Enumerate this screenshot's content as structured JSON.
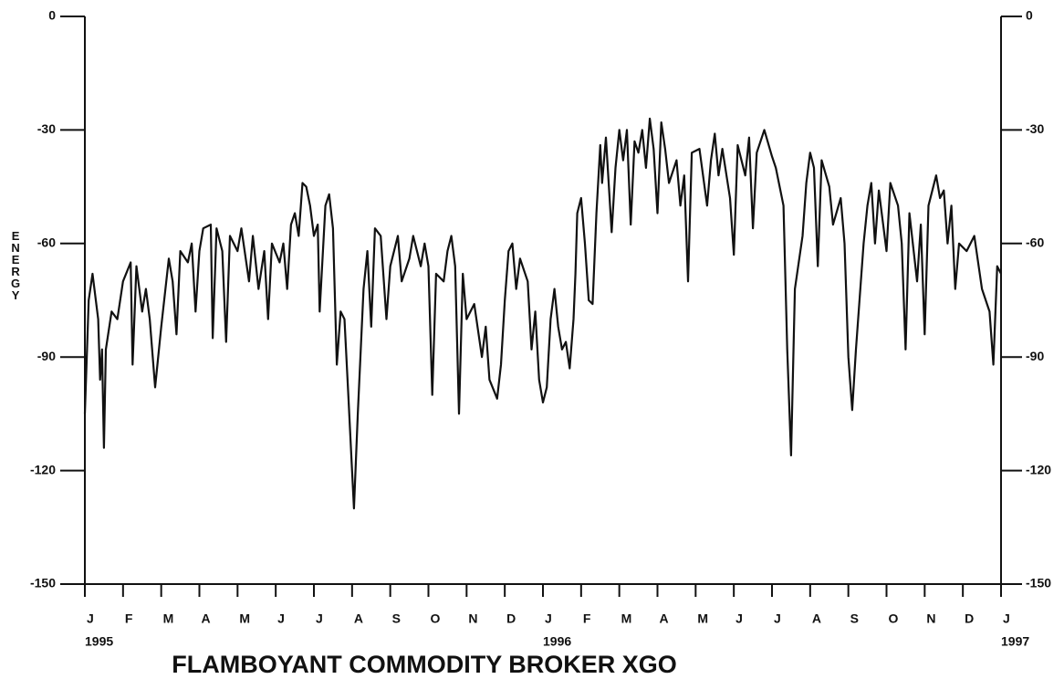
{
  "chart_data": {
    "type": "line",
    "title": "FLAMBOYANT COMMODITY BROKER XGO",
    "y_label": "ENERGY",
    "xlim": [
      0,
      24
    ],
    "xticks": [
      {
        "value": 0,
        "label": "J"
      },
      {
        "value": 1,
        "label": "F"
      },
      {
        "value": 2,
        "label": "M"
      },
      {
        "value": 3,
        "label": "A"
      },
      {
        "value": 4,
        "label": "M"
      },
      {
        "value": 5,
        "label": "J"
      },
      {
        "value": 6,
        "label": "J"
      },
      {
        "value": 7,
        "label": "A"
      },
      {
        "value": 8,
        "label": "S"
      },
      {
        "value": 9,
        "label": "O"
      },
      {
        "value": 10,
        "label": "N"
      },
      {
        "value": 11,
        "label": "D"
      },
      {
        "value": 12,
        "label": "J"
      },
      {
        "value": 13,
        "label": "F"
      },
      {
        "value": 14,
        "label": "M"
      },
      {
        "value": 15,
        "label": "A"
      },
      {
        "value": 16,
        "label": "M"
      },
      {
        "value": 17,
        "label": "J"
      },
      {
        "value": 18,
        "label": "J"
      },
      {
        "value": 19,
        "label": "A"
      },
      {
        "value": 20,
        "label": "S"
      },
      {
        "value": 21,
        "label": "O"
      },
      {
        "value": 22,
        "label": "N"
      },
      {
        "value": 23,
        "label": "D"
      },
      {
        "value": 24,
        "label": "J"
      }
    ],
    "year_labels": [
      {
        "value": 0,
        "label": "1995"
      },
      {
        "value": 12,
        "label": "1996"
      },
      {
        "value": 24,
        "label": "1997"
      }
    ],
    "ylim": [
      -150,
      0
    ],
    "yticks": [
      0,
      -30,
      -60,
      -90,
      -120,
      -150
    ],
    "y2lim": [
      -150,
      0
    ],
    "y2ticks": [
      0,
      -30,
      -60,
      -90,
      -120,
      -150
    ],
    "series": [
      {
        "color": "#111111",
        "x": [
          0,
          0.1,
          0.2,
          0.35,
          0.4,
          0.45,
          0.5,
          0.55,
          0.7,
          0.85,
          1.0,
          1.2,
          1.25,
          1.35,
          1.5,
          1.6,
          1.7,
          1.84,
          2.0,
          2.2,
          2.3,
          2.4,
          2.5,
          2.7,
          2.8,
          2.9,
          3.0,
          3.1,
          3.3,
          3.35,
          3.45,
          3.6,
          3.7,
          3.8,
          4.0,
          4.1,
          4.3,
          4.4,
          4.55,
          4.7,
          4.8,
          4.9,
          5.1,
          5.2,
          5.3,
          5.4,
          5.5,
          5.6,
          5.7,
          5.8,
          5.9,
          6.0,
          6.1,
          6.15,
          6.3,
          6.4,
          6.5,
          6.6,
          6.7,
          6.8,
          6.9,
          7.0,
          7.05,
          7.15,
          7.3,
          7.4,
          7.5,
          7.6,
          7.75,
          7.9,
          8.0,
          8.2,
          8.3,
          8.5,
          8.6,
          8.8,
          8.9,
          9.0,
          9.1,
          9.2,
          9.4,
          9.5,
          9.6,
          9.7,
          9.8,
          9.9,
          10.0,
          10.2,
          10.4,
          10.5,
          10.6,
          10.8,
          10.9,
          11.0,
          11.1,
          11.2,
          11.3,
          11.4,
          11.6,
          11.7,
          11.8,
          11.9,
          12.0,
          12.1,
          12.2,
          12.3,
          12.4,
          12.5,
          12.6,
          12.7,
          12.8,
          12.85,
          12.9,
          13.0,
          13.1,
          13.2,
          13.3,
          13.4,
          13.5,
          13.55,
          13.65,
          13.8,
          13.9,
          14.0,
          14.1,
          14.2,
          14.3,
          14.4,
          14.5,
          14.6,
          14.7,
          14.8,
          14.9,
          15.0,
          15.1,
          15.2,
          15.3,
          15.5,
          15.6,
          15.7,
          15.8,
          15.9,
          16.1,
          16.3,
          16.4,
          16.5,
          16.6,
          16.7,
          16.9,
          17.0,
          17.1,
          17.3,
          17.4,
          17.5,
          17.6,
          17.8,
          18.0,
          18.1,
          18.3,
          18.4,
          18.5,
          18.6,
          18.8,
          18.9,
          19.0,
          19.1,
          19.2,
          19.3,
          19.5,
          19.6,
          19.8,
          19.9,
          20.0,
          20.1,
          20.2,
          20.4,
          20.5,
          20.6,
          20.7,
          20.8,
          20.9,
          21.0,
          21.1,
          21.3,
          21.4,
          21.5,
          21.6,
          21.8,
          21.9,
          22.0,
          22.1,
          22.3,
          22.4,
          22.5,
          22.6,
          22.7,
          22.8,
          22.9,
          23.1,
          23.3,
          23.5,
          23.7,
          23.8,
          23.9,
          24.0
        ],
        "values": [
          -105,
          -75,
          -68,
          -80,
          -96,
          -88,
          -114,
          -88,
          -78,
          -80,
          -70,
          -65,
          -92,
          -66,
          -78,
          -72,
          -80,
          -98,
          -82,
          -64,
          -70,
          -84,
          -62,
          -65,
          -60,
          -78,
          -62,
          -56,
          -55,
          -85,
          -56,
          -62,
          -86,
          -58,
          -62,
          -56,
          -70,
          -58,
          -72,
          -62,
          -80,
          -60,
          -65,
          -60,
          -72,
          -55,
          -52,
          -58,
          -44,
          -45,
          -50,
          -58,
          -55,
          -78,
          -50,
          -47,
          -56,
          -92,
          -78,
          -80,
          -100,
          -120,
          -130,
          -105,
          -72,
          -62,
          -82,
          -56,
          -58,
          -80,
          -66,
          -58,
          -70,
          -64,
          -58,
          -66,
          -60,
          -66,
          -100,
          -68,
          -70,
          -62,
          -58,
          -66,
          -105,
          -68,
          -80,
          -76,
          -90,
          -82,
          -96,
          -101,
          -92,
          -75,
          -62,
          -60,
          -72,
          -64,
          -70,
          -88,
          -78,
          -96,
          -102,
          -98,
          -80,
          -72,
          -82,
          -88,
          -86,
          -93,
          -80,
          -68,
          -52,
          -48,
          -60,
          -75,
          -76,
          -52,
          -34,
          -44,
          -32,
          -57,
          -40,
          -30,
          -38,
          -30,
          -55,
          -33,
          -36,
          -30,
          -40,
          -27,
          -35,
          -52,
          -28,
          -35,
          -44,
          -38,
          -50,
          -42,
          -70,
          -36,
          -35,
          -50,
          -38,
          -31,
          -42,
          -35,
          -48,
          -63,
          -34,
          -42,
          -32,
          -56,
          -36,
          -30,
          -37,
          -40,
          -50,
          -88,
          -116,
          -72,
          -58,
          -44,
          -36,
          -40,
          -66,
          -38,
          -45,
          -55,
          -48,
          -60,
          -90,
          -104,
          -88,
          -60,
          -50,
          -44,
          -60,
          -46,
          -54,
          -62,
          -44,
          -50,
          -60,
          -88,
          -52,
          -70,
          -55,
          -84,
          -50,
          -42,
          -48,
          -46,
          -60,
          -50,
          -72,
          -60,
          -62,
          -58,
          -72,
          -78,
          -92,
          -66,
          -68
        ]
      }
    ]
  }
}
